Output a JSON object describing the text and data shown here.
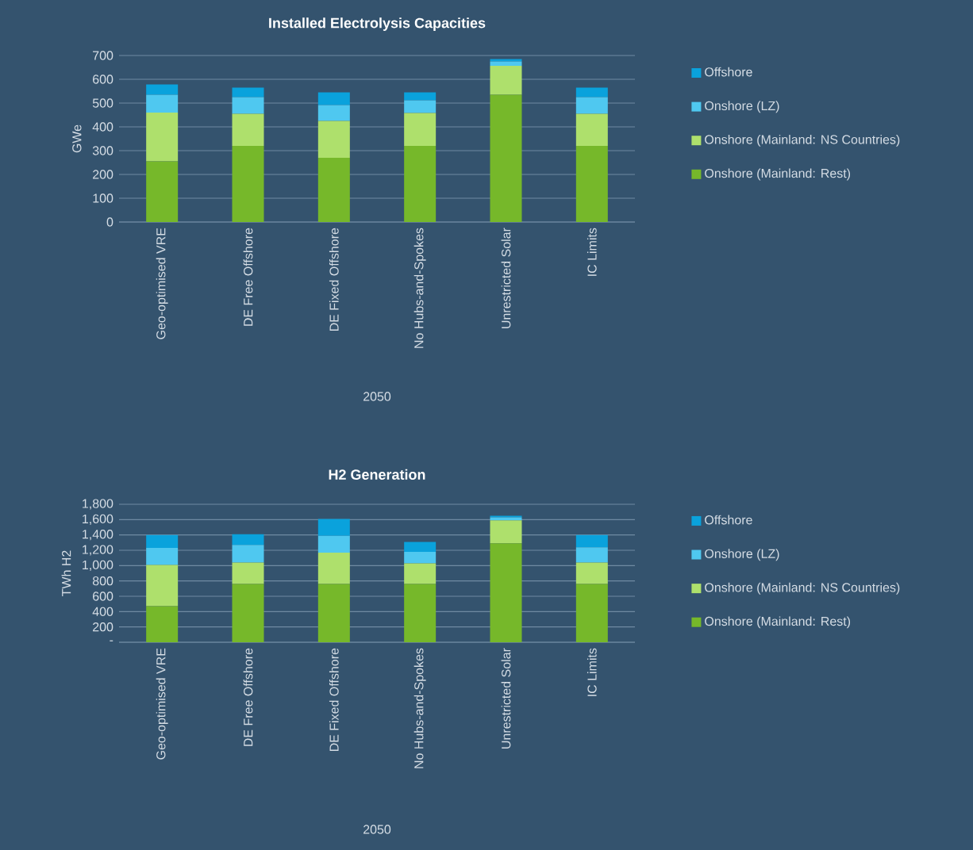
{
  "chart_data": [
    {
      "type": "bar",
      "stacked": true,
      "title": "Installed Electrolysis Capacities",
      "xlabel": "2050",
      "ylabel": "GWe",
      "categories": [
        "Geo-optimised VRE",
        "DE Free Offshore",
        "DE Fixed Offshore",
        "No Hubs-and-Spokes",
        "Unrestricted Solar",
        "IC Limits"
      ],
      "series": [
        {
          "name": "Onshore (Mainland: Rest)",
          "color": "#76b82a",
          "values": [
            255,
            320,
            270,
            320,
            535,
            320
          ]
        },
        {
          "name": "Onshore (Mainland: NS Countries)",
          "color": "#aee06c",
          "values": [
            205,
            135,
            155,
            138,
            122,
            135
          ]
        },
        {
          "name": "Onshore (LZ)",
          "color": "#4fc8f0",
          "values": [
            75,
            70,
            67,
            54,
            18,
            70
          ]
        },
        {
          "name": "Offshore",
          "color": "#0aa2dc",
          "values": [
            43,
            40,
            53,
            33,
            10,
            40
          ]
        }
      ],
      "ylim": [
        0,
        700
      ],
      "yticks": [
        0,
        100,
        200,
        300,
        400,
        500,
        600,
        700
      ],
      "grid": "y",
      "legend": "right"
    },
    {
      "type": "bar",
      "stacked": true,
      "title": "H2 Generation",
      "xlabel": "2050",
      "ylabel": "TWh H2",
      "categories": [
        "Geo-optimised VRE",
        "DE Free Offshore",
        "DE Fixed Offshore",
        "No Hubs-and-Spokes",
        "Unrestricted Solar",
        "IC Limits"
      ],
      "series": [
        {
          "name": "Onshore (Mainland: Rest)",
          "color": "#76b82a",
          "values": [
            470,
            760,
            760,
            760,
            1290,
            760
          ]
        },
        {
          "name": "Onshore (Mainland: NS Countries)",
          "color": "#aee06c",
          "values": [
            540,
            280,
            410,
            270,
            300,
            280
          ]
        },
        {
          "name": "Onshore (LZ)",
          "color": "#4fc8f0",
          "values": [
            220,
            230,
            220,
            150,
            40,
            200
          ]
        },
        {
          "name": "Offshore",
          "color": "#0aa2dc",
          "values": [
            170,
            140,
            220,
            130,
            20,
            160
          ]
        }
      ],
      "ylim": [
        0,
        1800
      ],
      "yticks": [
        {
          "value": 0,
          "label": "-"
        },
        {
          "value": 200,
          "label": "200"
        },
        {
          "value": 400,
          "label": "400"
        },
        {
          "value": 600,
          "label": "600"
        },
        {
          "value": 800,
          "label": "800"
        },
        {
          "value": 1000,
          "label": "1,000"
        },
        {
          "value": 1200,
          "label": "1,200"
        },
        {
          "value": 1400,
          "label": "1,400"
        },
        {
          "value": 1600,
          "label": "1,600"
        },
        {
          "value": 1800,
          "label": "1,800"
        }
      ],
      "grid": "y",
      "legend": "right"
    }
  ]
}
